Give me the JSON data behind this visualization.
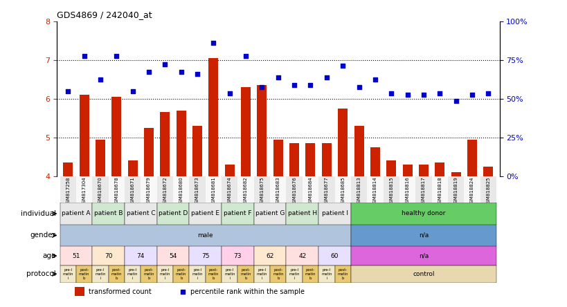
{
  "title": "GDS4869 / 242040_at",
  "samples": [
    "GSM817258",
    "GSM817304",
    "GSM818670",
    "GSM818678",
    "GSM818671",
    "GSM818679",
    "GSM818672",
    "GSM818680",
    "GSM818673",
    "GSM818681",
    "GSM818674",
    "GSM818682",
    "GSM818675",
    "GSM818683",
    "GSM818676",
    "GSM818684",
    "GSM818677",
    "GSM818685",
    "GSM818813",
    "GSM818814",
    "GSM818815",
    "GSM818816",
    "GSM818817",
    "GSM818818",
    "GSM818819",
    "GSM818824",
    "GSM818825"
  ],
  "red_values": [
    4.35,
    6.1,
    4.95,
    6.05,
    4.4,
    5.25,
    5.65,
    5.7,
    5.3,
    7.05,
    4.3,
    6.3,
    6.35,
    4.95,
    4.85,
    4.85,
    4.85,
    5.75,
    5.3,
    4.75,
    4.4,
    4.3,
    4.3,
    4.35,
    4.1,
    4.95,
    4.25
  ],
  "blue_values": [
    6.2,
    7.1,
    6.5,
    7.1,
    6.2,
    6.7,
    6.9,
    6.7,
    6.65,
    7.45,
    6.15,
    7.1,
    6.3,
    6.55,
    6.35,
    6.35,
    6.55,
    6.85,
    6.3,
    6.5,
    6.15,
    6.1,
    6.1,
    6.15,
    5.95,
    6.1,
    6.15
  ],
  "individuals": [
    "patient A",
    "patient A",
    "patient B",
    "patient B",
    "patient C",
    "patient C",
    "patient D",
    "patient D",
    "patient E",
    "patient E",
    "patient F",
    "patient F",
    "patient G",
    "patient G",
    "patient H",
    "patient H",
    "patient I",
    "patient I",
    "healthy donor",
    "healthy donor",
    "healthy donor",
    "healthy donor",
    "healthy donor",
    "healthy donor",
    "healthy donor",
    "healthy donor",
    "healthy donor"
  ],
  "individual_colors": {
    "patient A": "#e8e8e8",
    "patient B": "#d0e8d0",
    "patient C": "#e8e8e8",
    "patient D": "#d0e8d0",
    "patient E": "#e8e8e8",
    "patient F": "#d0e8d0",
    "patient G": "#e8e8e8",
    "patient H": "#d0e8d0",
    "patient I": "#e8e8e8",
    "healthy donor": "#66cc66"
  },
  "genders": [
    "male",
    "male",
    "male",
    "male",
    "male",
    "male",
    "male",
    "male",
    "male",
    "male",
    "male",
    "male",
    "male",
    "male",
    "male",
    "male",
    "male",
    "male",
    "n/a",
    "n/a",
    "n/a",
    "n/a",
    "n/a",
    "n/a",
    "n/a",
    "n/a",
    "n/a"
  ],
  "gender_colors": {
    "male": "#b0c4de",
    "female": "#ffb6c1",
    "n/a": "#6699cc"
  },
  "ages": [
    "51",
    "51",
    "70",
    "70",
    "74",
    "74",
    "54",
    "54",
    "75",
    "75",
    "73",
    "73",
    "62",
    "62",
    "42",
    "42",
    "60",
    "60",
    "n/a",
    "n/a",
    "n/a",
    "n/a",
    "n/a",
    "n/a",
    "n/a",
    "n/a",
    "n/a"
  ],
  "age_colors": {
    "51": "#ffe0e0",
    "70": "#ffe8d0",
    "74": "#e8e0ff",
    "54": "#ffe0e0",
    "75": "#e8e0ff",
    "73": "#ffd0e8",
    "62": "#ffe8d0",
    "42": "#ffe0e0",
    "60": "#e8e0ff",
    "n/a": "#dd66dd"
  },
  "protocols": [
    "pre-I\nmatin\ni",
    "post-\nmatin\nb",
    "pre-I\nmatin\ni",
    "post-\nmatin\nb",
    "pre-I\nmatin\ni",
    "post-\nmatin\nb",
    "pre-I\nmatin\ni",
    "post-\nmatin\nb",
    "pre-I\nmatin\ni",
    "post-\nmatin\nb",
    "pre-I\nmatin\ni",
    "post-\nmatin\nb",
    "pre-I\nmatin\ni",
    "post-\nmatin\nb",
    "pre-I\nmatin\ni",
    "post-\nmatin\nb",
    "pre-I\nmatin\ni",
    "post-\nmatin\nb",
    "control",
    "control",
    "control",
    "control",
    "control",
    "control",
    "control",
    "control",
    "control"
  ],
  "protocol_colors": {
    "pre-I\nmatin\ni": "#f0e8c8",
    "post-\nmatin\nb": "#e8c870",
    "control": "#e8d8b0"
  },
  "ylim_left": [
    4,
    8
  ],
  "ylim_right": [
    0,
    100
  ],
  "left_yticks": [
    4,
    5,
    6,
    7,
    8
  ],
  "right_yticks": [
    0,
    25,
    50,
    75,
    100
  ],
  "bar_color": "#cc2200",
  "dot_color": "#0000cc",
  "bg_color": "#ffffff"
}
